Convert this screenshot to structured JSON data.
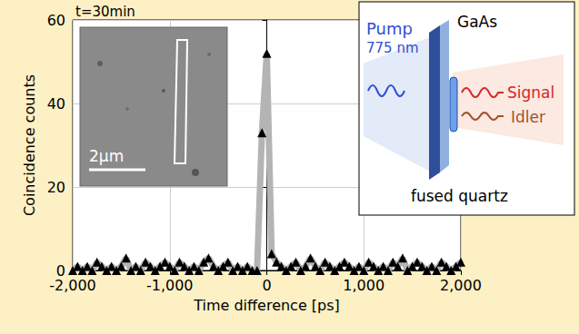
{
  "chart_data": {
    "type": "line",
    "title": "t=30min",
    "x_label": "Time difference [ps]",
    "y_label": "Coincidence counts",
    "x": [
      -2000,
      -1950,
      -1900,
      -1850,
      -1800,
      -1750,
      -1700,
      -1650,
      -1600,
      -1550,
      -1500,
      -1450,
      -1400,
      -1350,
      -1300,
      -1250,
      -1200,
      -1150,
      -1100,
      -1050,
      -1000,
      -950,
      -900,
      -850,
      -800,
      -750,
      -700,
      -650,
      -600,
      -550,
      -500,
      -450,
      -400,
      -350,
      -300,
      -250,
      -200,
      -150,
      -100,
      -50,
      0,
      50,
      100,
      150,
      200,
      250,
      300,
      350,
      400,
      450,
      500,
      550,
      600,
      650,
      700,
      750,
      800,
      850,
      900,
      950,
      1000,
      1050,
      1100,
      1150,
      1200,
      1250,
      1300,
      1350,
      1400,
      1450,
      1500,
      1550,
      1600,
      1650,
      1700,
      1750,
      1800,
      1850,
      1900,
      1950,
      2000
    ],
    "values": [
      0,
      1,
      0,
      1,
      0,
      2,
      1,
      0,
      1,
      0,
      1,
      3,
      0,
      1,
      0,
      2,
      1,
      0,
      1,
      2,
      1,
      0,
      2,
      1,
      0,
      1,
      0,
      2,
      3,
      1,
      0,
      1,
      2,
      0,
      1,
      0,
      1,
      0,
      0,
      33,
      52,
      4,
      2,
      1,
      0,
      1,
      2,
      0,
      1,
      3,
      1,
      0,
      2,
      1,
      0,
      1,
      2,
      1,
      0,
      1,
      0,
      2,
      1,
      0,
      1,
      0,
      2,
      1,
      3,
      0,
      1,
      2,
      1,
      0,
      1,
      0,
      2,
      1,
      0,
      1,
      2
    ],
    "color": "#000000",
    "marker": "triangle",
    "xlim": [
      -2000,
      2000
    ],
    "xticks": [
      -2000,
      -1000,
      0,
      1000,
      2000
    ],
    "ylim": [
      0,
      60
    ],
    "yticks": [
      0,
      20,
      40,
      60
    ],
    "grid": true,
    "annotations": [
      "2µm",
      "Pump",
      "775 nm",
      "GaAs",
      "Signal",
      "Idler",
      "fused quartz"
    ]
  }
}
